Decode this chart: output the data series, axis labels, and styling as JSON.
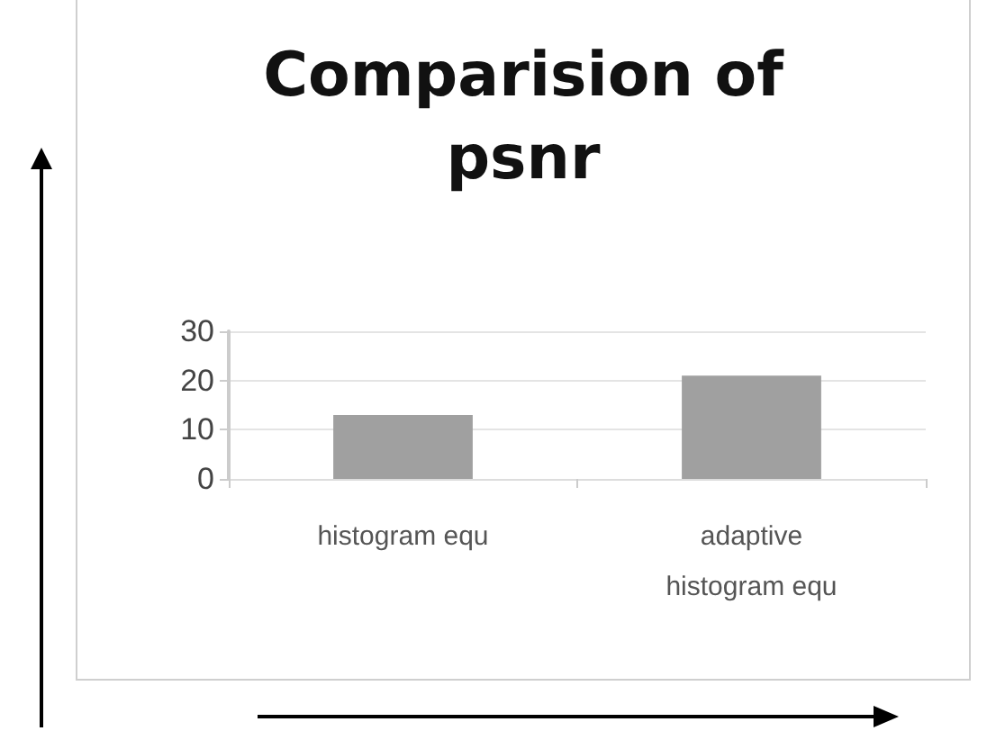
{
  "chart_data": {
    "type": "bar",
    "title": "Comparision of\npsnr",
    "categories": [
      "histogram equ",
      "adaptive\nhistogram equ"
    ],
    "values": [
      13,
      21
    ],
    "color": "#a0a0a0",
    "ylim": [
      0,
      30
    ],
    "yticks": [
      0,
      10,
      20,
      30
    ],
    "grid": "y"
  }
}
